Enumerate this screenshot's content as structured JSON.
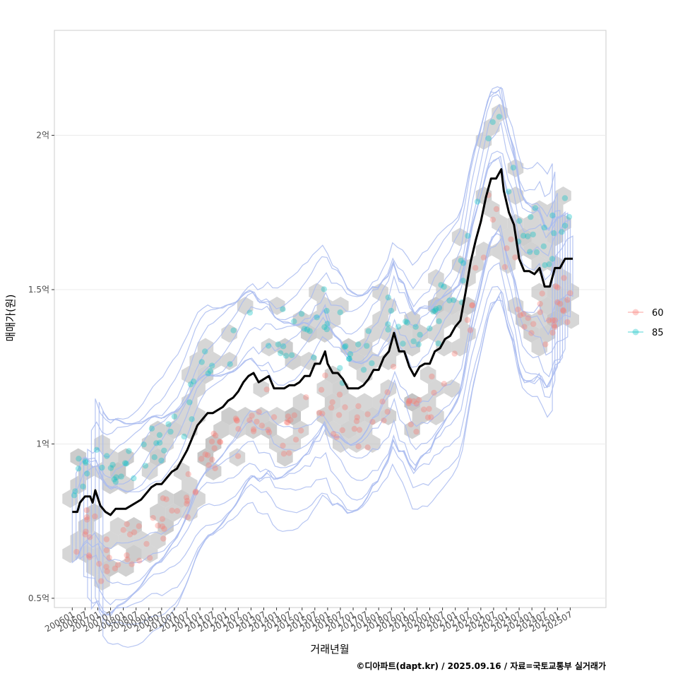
{
  "chart_data": {
    "type": "scatter",
    "title": "",
    "xlabel": "거래년월",
    "ylabel": "매매가(원)",
    "caption": "©디아파트(dapt.kr) / 2025.09.16 / 자료=국토교통부 실거래가",
    "x_domain": [
      2005.3,
      2026.9
    ],
    "ylim": [
      0.47,
      2.34
    ],
    "y_ticks": [
      {
        "value": 0.5,
        "label": "0.5억"
      },
      {
        "value": 1.0,
        "label": "1억"
      },
      {
        "value": 1.5,
        "label": "1.5억"
      },
      {
        "value": 2.0,
        "label": "2억"
      }
    ],
    "x_ticks": [
      {
        "value": 2006.0,
        "label": "200601"
      },
      {
        "value": 2006.5,
        "label": "200607"
      },
      {
        "value": 2007.0,
        "label": "200701"
      },
      {
        "value": 2007.5,
        "label": "200707"
      },
      {
        "value": 2008.0,
        "label": "200801"
      },
      {
        "value": 2008.5,
        "label": "200807"
      },
      {
        "value": 2009.0,
        "label": "200901"
      },
      {
        "value": 2009.5,
        "label": "200907"
      },
      {
        "value": 2010.0,
        "label": "201001"
      },
      {
        "value": 2010.5,
        "label": "201007"
      },
      {
        "value": 2011.0,
        "label": "201101"
      },
      {
        "value": 2011.5,
        "label": "201107"
      },
      {
        "value": 2012.0,
        "label": "201201"
      },
      {
        "value": 2012.5,
        "label": "201207"
      },
      {
        "value": 2013.0,
        "label": "201301"
      },
      {
        "value": 2013.5,
        "label": "201307"
      },
      {
        "value": 2014.0,
        "label": "201401"
      },
      {
        "value": 2014.5,
        "label": "201407"
      },
      {
        "value": 2015.0,
        "label": "201501"
      },
      {
        "value": 2015.5,
        "label": "201507"
      },
      {
        "value": 2016.0,
        "label": "201601"
      },
      {
        "value": 2016.5,
        "label": "201607"
      },
      {
        "value": 2017.0,
        "label": "201701"
      },
      {
        "value": 2017.5,
        "label": "201707"
      },
      {
        "value": 2018.0,
        "label": "201801"
      },
      {
        "value": 2018.5,
        "label": "201807"
      },
      {
        "value": 2019.0,
        "label": "201901"
      },
      {
        "value": 2019.5,
        "label": "201907"
      },
      {
        "value": 2020.0,
        "label": "202001"
      },
      {
        "value": 2020.5,
        "label": "202007"
      },
      {
        "value": 2021.0,
        "label": "202101"
      },
      {
        "value": 2021.5,
        "label": "202107"
      },
      {
        "value": 2022.0,
        "label": "202201"
      },
      {
        "value": 2022.5,
        "label": "202207"
      },
      {
        "value": 2023.0,
        "label": "202301"
      },
      {
        "value": 2023.5,
        "label": "202307"
      },
      {
        "value": 2024.0,
        "label": "202401"
      },
      {
        "value": 2024.5,
        "label": "202407"
      },
      {
        "value": 2025.0,
        "label": "202501"
      },
      {
        "value": 2025.5,
        "label": "202507"
      }
    ],
    "legend": [
      {
        "name": "60",
        "color": "#f8766d"
      },
      {
        "name": "85",
        "color": "#00bfc4"
      }
    ],
    "colors": {
      "hex": "#bebebe",
      "contour": "#a9bbf0",
      "median_line": "#000000",
      "grid": "#ebebeb",
      "panel_border": "#cccccc"
    },
    "median_line": [
      [
        2006.0,
        0.78
      ],
      [
        2006.2,
        0.78
      ],
      [
        2006.3,
        0.81
      ],
      [
        2006.5,
        0.83
      ],
      [
        2006.7,
        0.83
      ],
      [
        2006.8,
        0.81
      ],
      [
        2006.9,
        0.85
      ],
      [
        2007.1,
        0.8
      ],
      [
        2007.3,
        0.78
      ],
      [
        2007.5,
        0.77
      ],
      [
        2007.7,
        0.79
      ],
      [
        2007.9,
        0.79
      ],
      [
        2008.1,
        0.79
      ],
      [
        2008.3,
        0.8
      ],
      [
        2008.5,
        0.81
      ],
      [
        2008.7,
        0.82
      ],
      [
        2008.9,
        0.84
      ],
      [
        2009.1,
        0.86
      ],
      [
        2009.3,
        0.87
      ],
      [
        2009.5,
        0.87
      ],
      [
        2009.7,
        0.89
      ],
      [
        2009.9,
        0.91
      ],
      [
        2010.1,
        0.92
      ],
      [
        2010.3,
        0.95
      ],
      [
        2010.5,
        0.98
      ],
      [
        2010.7,
        1.02
      ],
      [
        2010.9,
        1.06
      ],
      [
        2011.1,
        1.08
      ],
      [
        2011.3,
        1.1
      ],
      [
        2011.5,
        1.1
      ],
      [
        2011.7,
        1.11
      ],
      [
        2011.9,
        1.12
      ],
      [
        2012.1,
        1.14
      ],
      [
        2012.3,
        1.15
      ],
      [
        2012.5,
        1.17
      ],
      [
        2012.7,
        1.2
      ],
      [
        2012.9,
        1.22
      ],
      [
        2013.1,
        1.23
      ],
      [
        2013.3,
        1.2
      ],
      [
        2013.5,
        1.21
      ],
      [
        2013.7,
        1.22
      ],
      [
        2013.9,
        1.18
      ],
      [
        2014.1,
        1.18
      ],
      [
        2014.3,
        1.18
      ],
      [
        2014.5,
        1.19
      ],
      [
        2014.7,
        1.19
      ],
      [
        2014.9,
        1.2
      ],
      [
        2015.1,
        1.22
      ],
      [
        2015.3,
        1.22
      ],
      [
        2015.5,
        1.26
      ],
      [
        2015.7,
        1.26
      ],
      [
        2015.9,
        1.3
      ],
      [
        2016.0,
        1.26
      ],
      [
        2016.2,
        1.23
      ],
      [
        2016.4,
        1.23
      ],
      [
        2016.6,
        1.21
      ],
      [
        2016.8,
        1.18
      ],
      [
        2017.0,
        1.18
      ],
      [
        2017.2,
        1.18
      ],
      [
        2017.4,
        1.19
      ],
      [
        2017.6,
        1.21
      ],
      [
        2017.8,
        1.24
      ],
      [
        2018.0,
        1.24
      ],
      [
        2018.2,
        1.28
      ],
      [
        2018.4,
        1.3
      ],
      [
        2018.6,
        1.36
      ],
      [
        2018.8,
        1.3
      ],
      [
        2019.0,
        1.3
      ],
      [
        2019.2,
        1.25
      ],
      [
        2019.4,
        1.22
      ],
      [
        2019.6,
        1.25
      ],
      [
        2019.8,
        1.26
      ],
      [
        2020.0,
        1.26
      ],
      [
        2020.2,
        1.3
      ],
      [
        2020.4,
        1.31
      ],
      [
        2020.6,
        1.34
      ],
      [
        2020.8,
        1.35
      ],
      [
        2021.0,
        1.38
      ],
      [
        2021.2,
        1.4
      ],
      [
        2021.4,
        1.49
      ],
      [
        2021.6,
        1.59
      ],
      [
        2021.8,
        1.66
      ],
      [
        2022.0,
        1.72
      ],
      [
        2022.2,
        1.8
      ],
      [
        2022.4,
        1.86
      ],
      [
        2022.6,
        1.86
      ],
      [
        2022.8,
        1.89
      ],
      [
        2022.9,
        1.82
      ],
      [
        2023.1,
        1.75
      ],
      [
        2023.3,
        1.71
      ],
      [
        2023.5,
        1.6
      ],
      [
        2023.7,
        1.56
      ],
      [
        2023.9,
        1.56
      ],
      [
        2024.1,
        1.55
      ],
      [
        2024.3,
        1.57
      ],
      [
        2024.5,
        1.51
      ],
      [
        2024.7,
        1.51
      ],
      [
        2024.9,
        1.57
      ],
      [
        2025.1,
        1.57
      ],
      [
        2025.3,
        1.6
      ],
      [
        2025.6,
        1.6
      ]
    ]
  }
}
